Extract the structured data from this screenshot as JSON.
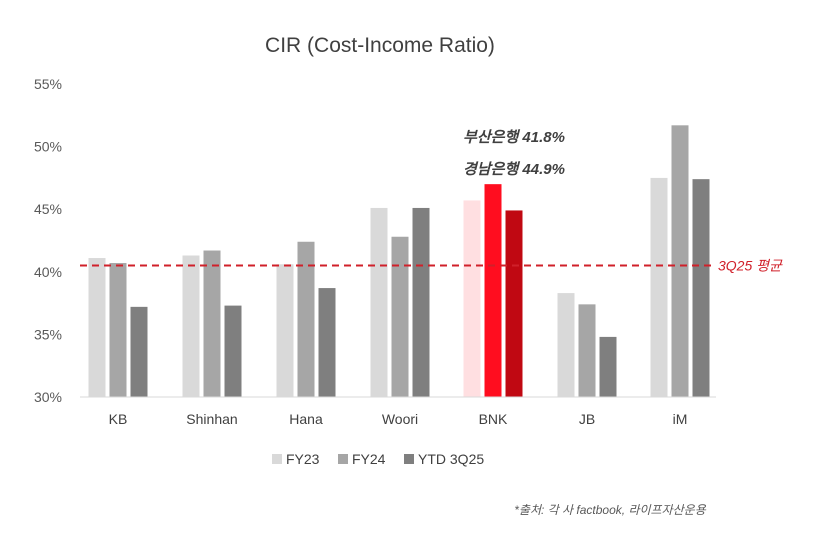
{
  "chart_data": {
    "type": "bar",
    "title": "CIR (Cost-Income Ratio)",
    "categories": [
      "KB",
      "Shinhan",
      "Hana",
      "Woori",
      "BNK",
      "JB",
      "iM"
    ],
    "series": [
      {
        "name": "FY23",
        "values": [
          41.1,
          41.3,
          40.6,
          45.1,
          45.7,
          38.3,
          47.5
        ],
        "color": "#d9d9d9"
      },
      {
        "name": "FY24",
        "values": [
          40.7,
          41.7,
          42.4,
          42.8,
          47.0,
          37.4,
          51.7
        ],
        "color": "#a6a6a6"
      },
      {
        "name": "YTD 3Q25",
        "values": [
          37.2,
          37.3,
          38.7,
          45.1,
          44.9,
          34.8,
          47.4
        ],
        "color": "#7f7f7f"
      }
    ],
    "highlight": {
      "category": "BNK",
      "colors": [
        "#ffdfe1",
        "#ff0d1f",
        "#c00812"
      ]
    },
    "ylim": [
      30,
      55
    ],
    "yticks": [
      "30%",
      "35%",
      "40%",
      "45%",
      "50%",
      "55%"
    ],
    "ytick_values": [
      30,
      35,
      40,
      45,
      50,
      55
    ],
    "reference_line": {
      "value": 40.5,
      "label": "3Q25 평균",
      "color": "#d0202a"
    },
    "annotations": [
      "부산은행 41.8%",
      "경남은행 44.9%"
    ],
    "legend_position": "bottom",
    "xlabel": "",
    "ylabel": ""
  },
  "source": "*출처: 각 사 factbook, 라이프자산운용"
}
